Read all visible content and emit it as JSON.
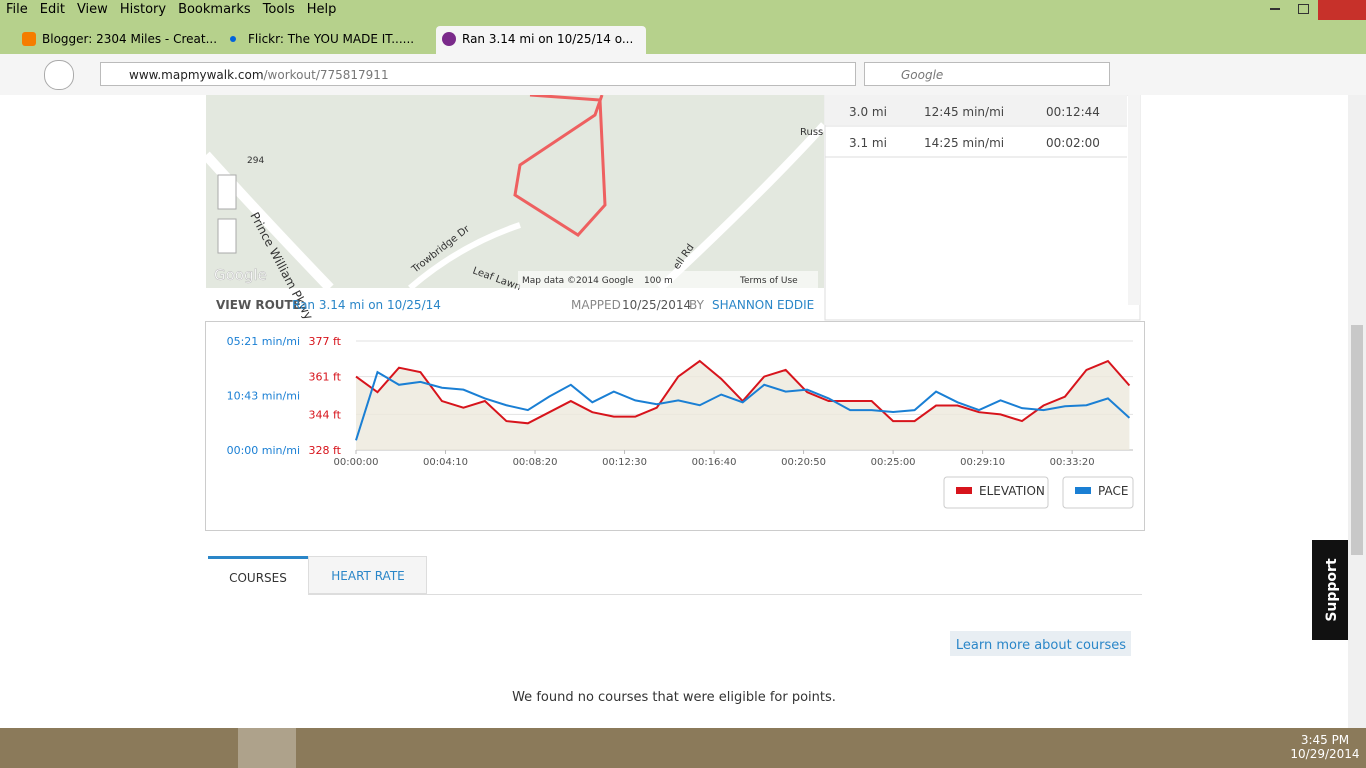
{
  "browser": {
    "menu": [
      "File",
      "Edit",
      "View",
      "History",
      "Bookmarks",
      "Tools",
      "Help"
    ],
    "tabs": [
      "Blogger: 2304 Miles - Creat...",
      "Flickr: The YOU MADE IT......",
      "Ran 3.14 mi on 10/25/14 o..."
    ],
    "url_host": "www.mapmywalk.com",
    "url_path": "/workout/775817911",
    "search": "Google"
  },
  "map": {
    "roads": [
      "Prince William Pkwy",
      "294",
      "Trowbridge Dr",
      "Leaf Lawn",
      "Russ",
      "ell Rd"
    ],
    "attribution": "Map data ©2014 Google",
    "scale": "100 m",
    "terms": "Terms of Use",
    "logo": "Google"
  },
  "splits": [
    [
      "3.0 mi",
      "12:45 min/mi",
      "00:12:44"
    ],
    [
      "3.1 mi",
      "14:25 min/mi",
      "00:02:00"
    ]
  ],
  "route": {
    "label": "VIEW ROUTE",
    "name": "Ran 3.14 mi on 10/25/14",
    "mapped": "MAPPED",
    "date": "10/25/2014",
    "by": "BY",
    "user": "SHANNON EDDIE"
  },
  "chart_data": {
    "type": "line",
    "x": [
      0,
      60,
      120,
      180,
      240,
      300,
      360,
      420,
      480,
      540,
      600,
      660,
      720,
      780,
      840,
      900,
      960,
      1020,
      1080,
      1140,
      1200,
      1260,
      1320,
      1380,
      1440,
      1500,
      1560,
      1620,
      1680,
      1740,
      1800,
      1860,
      1920,
      1980,
      2040,
      2100,
      2160
    ],
    "xlim": [
      0,
      2170
    ],
    "xticks": [
      {
        "value": 0,
        "label": "00:00:00"
      },
      {
        "value": 250,
        "label": "00:04:10"
      },
      {
        "value": 500,
        "label": "00:08:20"
      },
      {
        "value": 750,
        "label": "00:12:30"
      },
      {
        "value": 1000,
        "label": "00:16:40"
      },
      {
        "value": 1250,
        "label": "00:20:50"
      },
      {
        "value": 1500,
        "label": "00:25:00"
      },
      {
        "value": 1750,
        "label": "00:29:10"
      },
      {
        "value": 2000,
        "label": "00:33:20"
      }
    ],
    "ylim": [
      328,
      377
    ],
    "yticks": [
      {
        "value": 328,
        "label": "328 ft"
      },
      {
        "value": 344,
        "label": "344 ft"
      },
      {
        "value": 361,
        "label": "361 ft"
      },
      {
        "value": 377,
        "label": "377 ft"
      }
    ],
    "y2lim": [
      0,
      11.2
    ],
    "y2ticks": [
      {
        "value": 0,
        "label": "00:00 min/mi"
      },
      {
        "value": 5.6,
        "label": "10:43 min/mi"
      },
      {
        "value": 11.2,
        "label": "05:21 min/mi"
      }
    ],
    "grid": true,
    "series": [
      {
        "name": "ELEVATION",
        "color": "#d7141c",
        "values": [
          361,
          354,
          365,
          363,
          350,
          347,
          350,
          341,
          340,
          345,
          350,
          345,
          343,
          343,
          347,
          361,
          368,
          360,
          350,
          361,
          364,
          354,
          350,
          350,
          350,
          341,
          341,
          348,
          348,
          345,
          344,
          341,
          348,
          352,
          364,
          368,
          357
        ]
      },
      {
        "name": "PACE",
        "color": "#1a7fd4",
        "axis": "y2",
        "values": [
          1.0,
          8.0,
          6.7,
          7.0,
          6.4,
          6.2,
          5.3,
          4.6,
          4.1,
          5.5,
          6.7,
          4.9,
          6.0,
          5.1,
          4.7,
          5.1,
          4.6,
          5.7,
          4.9,
          6.7,
          6.0,
          6.2,
          5.3,
          4.1,
          4.1,
          3.9,
          4.1,
          6.0,
          4.9,
          4.1,
          5.1,
          4.3,
          4.1,
          4.5,
          4.6,
          5.3,
          3.3
        ]
      }
    ]
  },
  "tabs": [
    "COURSES",
    "HEART RATE"
  ],
  "learn_more": "Learn more about courses",
  "message": "We found no courses that were eligible for points.",
  "support": "Support",
  "taskbar": {
    "time": "3:45 PM",
    "date": "10/29/2014"
  }
}
